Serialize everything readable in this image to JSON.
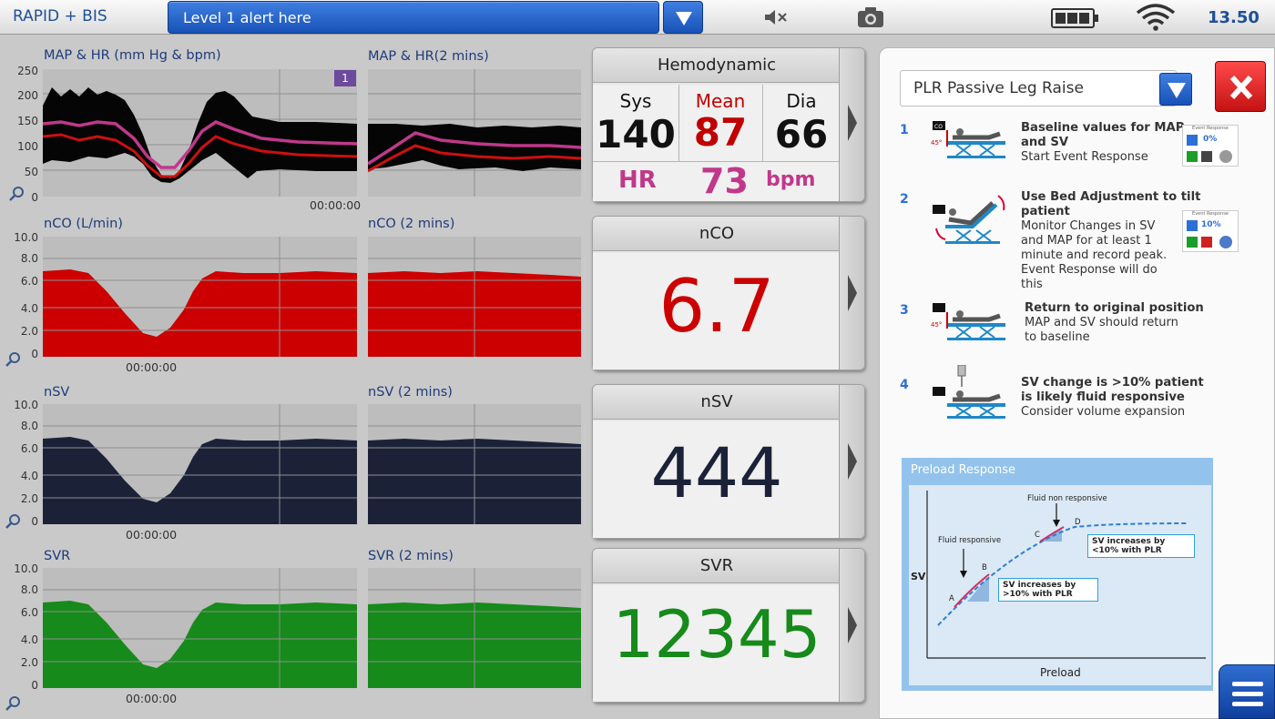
{
  "topbar": {
    "app_title": "RAPID + BIS",
    "alert_text": "Level 1 alert here",
    "clock": "13.50",
    "icons": [
      "chevron-down-icon",
      "mute-icon",
      "camera-icon",
      "battery-icon",
      "wifi-icon"
    ]
  },
  "plots": {
    "map_hr": {
      "title": "MAP & HR (mm Hg & bpm)",
      "title_2min": "MAP & HR(2 mins)",
      "yticks": [
        "250",
        "200",
        "150",
        "100",
        "50",
        "0"
      ],
      "time": "00:00:00",
      "badge": "1"
    },
    "nco": {
      "title": "nCO (L/min)",
      "title_2min": "nCO (2 mins)",
      "yticks": [
        "10.0",
        "8.0",
        "6.0",
        "4.0",
        "2.0",
        "0"
      ],
      "time": "00:00:00"
    },
    "nsv": {
      "title": "nSV",
      "title_2min": "nSV (2 mins)",
      "yticks": [
        "10.0",
        "8.0",
        "6.0",
        "4.0",
        "2.0",
        "0"
      ],
      "time": "00:00:00"
    },
    "svr": {
      "title": "SVR",
      "title_2min": "SVR (2 mins)",
      "yticks": [
        "10.0",
        "8.0",
        "6.0",
        "4.0",
        "2.0",
        "0"
      ],
      "time": "00:00:00"
    }
  },
  "tiles": {
    "hemo": {
      "title": "Hemodynamic",
      "sys_label": "Sys",
      "sys_value": "140",
      "mean_label": "Mean",
      "mean_value": "87",
      "dia_label": "Dia",
      "dia_value": "66",
      "hr_label": "HR",
      "hr_value": "73",
      "hr_unit": "bpm"
    },
    "nco": {
      "title": "nCO",
      "value": "6.7"
    },
    "nsv": {
      "title": "nSV",
      "value": "444"
    },
    "svr": {
      "title": "SVR",
      "value": "12345"
    }
  },
  "colors": {
    "nco": "#cc0000",
    "nsv": "#1b2238",
    "svr": "#168a1a",
    "mean": "#c00000",
    "hr": "#c0388a",
    "accent": "#2c6fd6"
  },
  "protocol": {
    "selected": "PLR Passive Leg Raise",
    "steps": [
      {
        "num": "1",
        "title": "Baseline values for MAP and SV",
        "desc": "Start Event Response",
        "angle": "45°"
      },
      {
        "num": "2",
        "title": "Use Bed Adjustment to tilt patient",
        "desc": "Monitor Changes in SV and MAP for at least 1 minute and record peak. Event Response will do this"
      },
      {
        "num": "3",
        "title": "Return to original position",
        "desc": "MAP and SV should return to baseline",
        "angle": "45°"
      },
      {
        "num": "4",
        "title": "SV change is >10% patient is likely fluid responsive",
        "desc": "Consider volume expansion"
      }
    ],
    "mini_panels": [
      {
        "header": "Event Response",
        "value": "0%"
      },
      {
        "header": "Event Response",
        "value": "10%"
      }
    ],
    "co_tag": "CO"
  },
  "preload": {
    "title": "Preload Response",
    "ylabel": "SV",
    "xlabel": "Preload",
    "fluid_responsive": "Fluid responsive",
    "fluid_non_responsive": "Fluid non responsive",
    "box_low": "SV increases by <10% with PLR",
    "box_high": "SV increases by >10% with PLR",
    "points": [
      "A",
      "B",
      "C",
      "D"
    ]
  }
}
